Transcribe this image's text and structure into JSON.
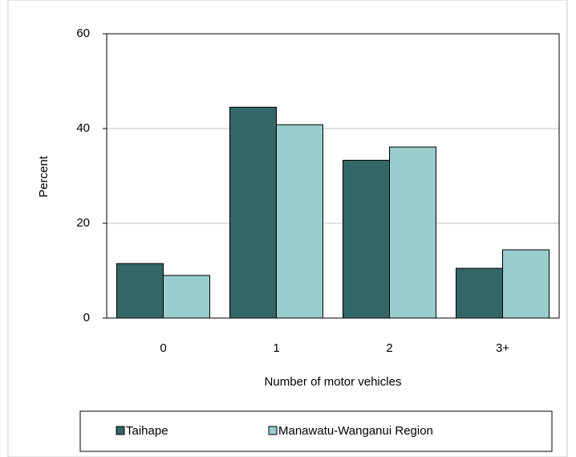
{
  "chart_data": {
    "type": "bar",
    "categories": [
      "0",
      "1",
      "2",
      "3+"
    ],
    "series": [
      {
        "name": "Taihape",
        "color": "#336666",
        "values": [
          11.5,
          44.5,
          33.3,
          10.5
        ]
      },
      {
        "name": "Manawatu-Wanganui Region",
        "color": "#99cccc",
        "values": [
          9.0,
          40.8,
          36.1,
          14.4
        ]
      }
    ],
    "x_label": "Number of motor vehicles",
    "y_label": "Percent",
    "ylim": [
      0,
      60
    ],
    "yticks": [
      0,
      20,
      40,
      60
    ],
    "grid": true,
    "legend": "bottom"
  }
}
